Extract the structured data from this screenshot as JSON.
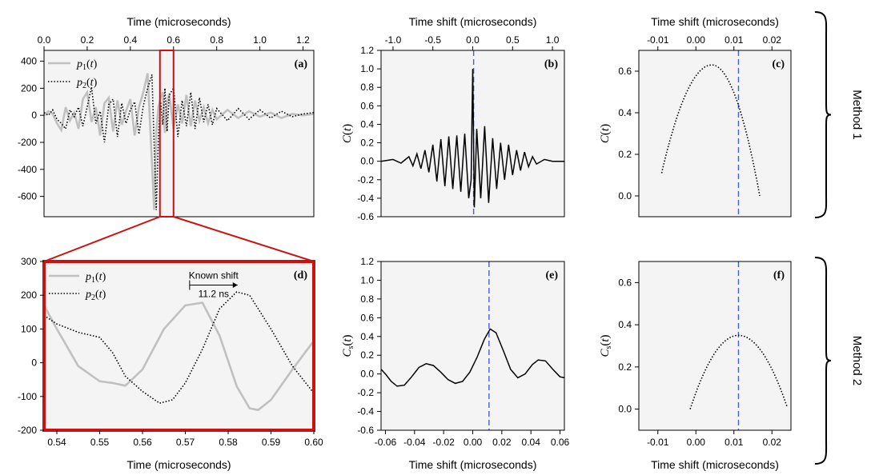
{
  "colors": {
    "plot_bg": "#f4f4f4",
    "p1_line": "#c0c0c0",
    "p2_line": "#000000",
    "guide_line": "#4060e0",
    "highlight": "#cc1111"
  },
  "method_labels": [
    "Method 1",
    "Method 2"
  ],
  "chart_data": [
    {
      "id": "a",
      "panel_label": "(a)",
      "type": "line",
      "title": "",
      "xlabel": "Time (microseconds)",
      "ylabel": "",
      "xaxis_position": "top",
      "xlim": [
        0,
        1.25
      ],
      "ylim": [
        -750,
        480
      ],
      "xticks": [
        0.0,
        0.2,
        0.4,
        0.6,
        0.8,
        1.0,
        1.2
      ],
      "xtick_labels": [
        "0.0",
        "0.2",
        "0.4",
        "0.6",
        "0.8",
        "1.0",
        "1.2"
      ],
      "yticks": [
        400,
        200,
        0,
        -200,
        -400,
        -600
      ],
      "ytick_labels": [
        "400",
        "200",
        "0",
        "-200",
        "-400",
        "-600"
      ],
      "legend": [
        "p1(t)",
        "p2(t)"
      ],
      "legend_placement": "top-left",
      "highlight_box": {
        "x": [
          0.537,
          0.6
        ],
        "y": [
          -750,
          480
        ]
      },
      "series": [
        {
          "name": "p1(t)",
          "style": "solid-gray",
          "x": [
            0,
            0.02,
            0.04,
            0.06,
            0.08,
            0.1,
            0.12,
            0.14,
            0.16,
            0.18,
            0.2,
            0.22,
            0.24,
            0.26,
            0.28,
            0.3,
            0.32,
            0.34,
            0.36,
            0.38,
            0.4,
            0.42,
            0.44,
            0.46,
            0.48,
            0.5,
            0.51,
            0.52,
            0.53,
            0.54,
            0.55,
            0.56,
            0.57,
            0.58,
            0.6,
            0.62,
            0.64,
            0.66,
            0.68,
            0.7,
            0.72,
            0.74,
            0.76,
            0.78,
            0.8,
            0.85,
            0.9,
            0.95,
            1.0,
            1.05,
            1.1,
            1.15,
            1.2,
            1.25
          ],
          "y": [
            0,
            30,
            10,
            -60,
            -110,
            60,
            -40,
            20,
            -100,
            120,
            170,
            -50,
            60,
            -150,
            90,
            130,
            -120,
            110,
            -70,
            30,
            120,
            -150,
            60,
            170,
            310,
            -350,
            -700,
            -120,
            60,
            130,
            170,
            -130,
            90,
            160,
            -100,
            80,
            -60,
            150,
            -80,
            110,
            -40,
            60,
            -60,
            40,
            -30,
            40,
            -20,
            30,
            -10,
            20,
            -20,
            10,
            0,
            10
          ]
        },
        {
          "name": "p2(t)",
          "style": "dotted-black",
          "x": [
            0,
            0.02,
            0.04,
            0.06,
            0.08,
            0.1,
            0.12,
            0.14,
            0.16,
            0.18,
            0.2,
            0.22,
            0.24,
            0.26,
            0.28,
            0.3,
            0.32,
            0.34,
            0.36,
            0.38,
            0.4,
            0.42,
            0.44,
            0.46,
            0.48,
            0.5,
            0.51,
            0.52,
            0.53,
            0.54,
            0.55,
            0.56,
            0.57,
            0.58,
            0.6,
            0.62,
            0.64,
            0.66,
            0.68,
            0.7,
            0.72,
            0.74,
            0.76,
            0.78,
            0.8,
            0.85,
            0.9,
            0.95,
            1.0,
            1.05,
            1.1,
            1.15,
            1.2,
            1.25
          ],
          "y": [
            20,
            0,
            40,
            -30,
            -60,
            -100,
            40,
            -10,
            60,
            -80,
            60,
            210,
            -60,
            30,
            -200,
            80,
            120,
            -160,
            90,
            -60,
            40,
            100,
            -140,
            70,
            200,
            300,
            -200,
            -700,
            -150,
            100,
            -70,
            200,
            -120,
            150,
            200,
            -160,
            110,
            -80,
            170,
            -100,
            130,
            -50,
            80,
            -70,
            50,
            -40,
            50,
            -30,
            40,
            -20,
            30,
            -10,
            10,
            20
          ]
        }
      ]
    },
    {
      "id": "b",
      "panel_label": "(b)",
      "type": "line",
      "title": "",
      "xlabel": "Time shift (microseconds)",
      "ylabel": "C(t)",
      "xaxis_position": "top",
      "xlim": [
        -1.15,
        1.15
      ],
      "ylim": [
        -0.6,
        1.2
      ],
      "xticks": [
        -1.0,
        -0.5,
        0.0,
        0.5,
        1.0
      ],
      "xtick_labels": [
        "-1.0",
        "-0.5",
        "0.0",
        "0.5",
        "1.0"
      ],
      "yticks": [
        1.2,
        1.0,
        0.8,
        0.6,
        0.4,
        0.2,
        0.0,
        -0.2,
        -0.4,
        -0.6
      ],
      "ytick_labels": [
        "1.2",
        "1.0",
        "0.8",
        "0.6",
        "0.4",
        "0.2",
        "0.0",
        "-0.2",
        "-0.4",
        "-0.6"
      ],
      "guide_x": 0.0112,
      "series": [
        {
          "name": "",
          "style": "solid-black",
          "x": [
            -1.15,
            -1.0,
            -0.9,
            -0.8,
            -0.75,
            -0.7,
            -0.65,
            -0.6,
            -0.55,
            -0.5,
            -0.45,
            -0.4,
            -0.35,
            -0.3,
            -0.25,
            -0.2,
            -0.15,
            -0.1,
            -0.05,
            -0.02,
            0.0,
            0.02,
            0.05,
            0.1,
            0.15,
            0.2,
            0.25,
            0.3,
            0.35,
            0.4,
            0.45,
            0.5,
            0.55,
            0.6,
            0.65,
            0.7,
            0.75,
            0.8,
            0.9,
            1.0,
            1.15
          ],
          "y": [
            0.0,
            0.02,
            -0.02,
            0.05,
            -0.05,
            0.08,
            -0.08,
            0.12,
            -0.12,
            0.18,
            -0.22,
            0.24,
            -0.27,
            0.27,
            -0.3,
            0.28,
            -0.33,
            0.3,
            -0.4,
            -0.2,
            1.0,
            -0.5,
            0.35,
            -0.4,
            0.38,
            -0.45,
            0.25,
            -0.3,
            0.2,
            -0.2,
            0.18,
            -0.15,
            0.12,
            -0.1,
            0.1,
            -0.06,
            0.05,
            -0.03,
            0.02,
            0.0,
            0.0
          ]
        }
      ]
    },
    {
      "id": "c",
      "panel_label": "(c)",
      "type": "line",
      "title": "",
      "xlabel": "Time shift (microseconds)",
      "ylabel": "C(t)",
      "xaxis_position": "top",
      "xlim": [
        -0.015,
        0.025
      ],
      "ylim": [
        -0.1,
        0.7
      ],
      "xticks": [
        -0.01,
        0.0,
        0.01,
        0.02
      ],
      "xtick_labels": [
        "-0.01",
        "0.00",
        "0.01",
        "0.02"
      ],
      "yticks": [
        0.6,
        0.4,
        0.2,
        0.0
      ],
      "ytick_labels": [
        "0.6",
        "0.4",
        "0.2",
        "0.0"
      ],
      "guide_x": 0.0112,
      "series": [
        {
          "name": "",
          "style": "dotted-black",
          "curve": "parabola",
          "x_range": [
            -0.009,
            0.0168
          ],
          "peak_x": 0.0042,
          "peak_y": 0.63,
          "end_y": [
            0.11,
            0.0
          ]
        }
      ]
    },
    {
      "id": "d",
      "panel_label": "(d)",
      "type": "line",
      "title": "",
      "xlabel": "Time (microseconds)",
      "ylabel": "",
      "xaxis_position": "bottom",
      "xlim": [
        0.537,
        0.6
      ],
      "ylim": [
        -200,
        300
      ],
      "xticks": [
        0.54,
        0.55,
        0.56,
        0.57,
        0.58,
        0.59,
        0.6
      ],
      "xtick_labels": [
        "0.54",
        "0.55",
        "0.56",
        "0.57",
        "0.58",
        "0.59",
        "0.60"
      ],
      "yticks": [
        300,
        200,
        100,
        0,
        -100,
        -200
      ],
      "ytick_labels": [
        "300",
        "200",
        "100",
        "0",
        "-100",
        "-200"
      ],
      "legend": [
        "p1(t)",
        "p2(t)"
      ],
      "legend_placement": "top-left",
      "annotation": {
        "label": "Known shift",
        "value": "11.2 ns",
        "x_from": 0.571,
        "x_to": 0.5822,
        "y": 230
      },
      "series": [
        {
          "name": "p1(t)",
          "style": "solid-gray",
          "x": [
            0.537,
            0.54,
            0.545,
            0.55,
            0.553,
            0.556,
            0.56,
            0.565,
            0.57,
            0.574,
            0.578,
            0.582,
            0.585,
            0.587,
            0.59,
            0.595,
            0.6
          ],
          "y": [
            170,
            100,
            -10,
            -55,
            -60,
            -68,
            -20,
            100,
            170,
            178,
            80,
            -70,
            -135,
            -140,
            -110,
            -20,
            65
          ]
        },
        {
          "name": "p2(t)",
          "style": "dotted-black",
          "x": [
            0.537,
            0.54,
            0.545,
            0.55,
            0.553,
            0.556,
            0.56,
            0.564,
            0.567,
            0.57,
            0.574,
            0.578,
            0.582,
            0.585,
            0.59,
            0.595,
            0.6
          ],
          "y": [
            140,
            115,
            90,
            75,
            30,
            -40,
            -85,
            -120,
            -110,
            -60,
            40,
            160,
            210,
            200,
            100,
            -10,
            -90
          ]
        }
      ]
    },
    {
      "id": "e",
      "panel_label": "(e)",
      "type": "line",
      "title": "",
      "xlabel": "Time shift (microseconds)",
      "ylabel": "Cs(t)",
      "xaxis_position": "bottom",
      "xlim": [
        -0.063,
        0.063
      ],
      "ylim": [
        -0.6,
        1.2
      ],
      "xticks": [
        -0.06,
        -0.04,
        -0.02,
        0.0,
        0.02,
        0.04,
        0.06
      ],
      "xtick_labels": [
        "-0.06",
        "-0.04",
        "-0.02",
        "0.00",
        "0.02",
        "0.04",
        "0.06"
      ],
      "yticks": [
        1.2,
        1.0,
        0.8,
        0.6,
        0.4,
        0.2,
        0.0,
        -0.2,
        -0.4,
        -0.6
      ],
      "ytick_labels": [
        "1.2",
        "1.0",
        "0.8",
        "0.6",
        "0.4",
        "0.2",
        "0.0",
        "-0.2",
        "-0.4",
        "-0.6"
      ],
      "guide_x": 0.0112,
      "series": [
        {
          "name": "",
          "style": "solid-black",
          "x": [
            -0.063,
            -0.06,
            -0.056,
            -0.052,
            -0.047,
            -0.042,
            -0.037,
            -0.032,
            -0.027,
            -0.022,
            -0.017,
            -0.012,
            -0.007,
            -0.002,
            0.003,
            0.008,
            0.012,
            0.016,
            0.021,
            0.026,
            0.031,
            0.036,
            0.041,
            0.045,
            0.05,
            0.055,
            0.06,
            0.063
          ],
          "y": [
            0.05,
            0.0,
            -0.08,
            -0.13,
            -0.12,
            -0.03,
            0.07,
            0.11,
            0.09,
            0.02,
            -0.06,
            -0.1,
            -0.08,
            0.02,
            0.18,
            0.37,
            0.48,
            0.44,
            0.25,
            0.05,
            -0.04,
            0.0,
            0.1,
            0.15,
            0.14,
            0.05,
            -0.03,
            -0.04
          ]
        }
      ]
    },
    {
      "id": "f",
      "panel_label": "(f)",
      "type": "line",
      "title": "",
      "xlabel": "Time shift (microseconds)",
      "ylabel": "Cs(t)",
      "xaxis_position": "bottom",
      "xlim": [
        -0.015,
        0.025
      ],
      "ylim": [
        -0.1,
        0.7
      ],
      "xticks": [
        -0.01,
        0.0,
        0.01,
        0.02
      ],
      "xtick_labels": [
        "-0.01",
        "0.00",
        "0.01",
        "0.02"
      ],
      "yticks": [
        0.6,
        0.4,
        0.2,
        0.0
      ],
      "ytick_labels": [
        "0.6",
        "0.4",
        "0.2",
        "0.0"
      ],
      "guide_x": 0.0112,
      "series": [
        {
          "name": "",
          "style": "dotted-black",
          "curve": "parabola",
          "x_range": [
            -0.0015,
            0.024
          ],
          "peak_x": 0.0112,
          "peak_y": 0.35,
          "end_y": [
            0.0,
            0.01
          ]
        }
      ]
    }
  ]
}
